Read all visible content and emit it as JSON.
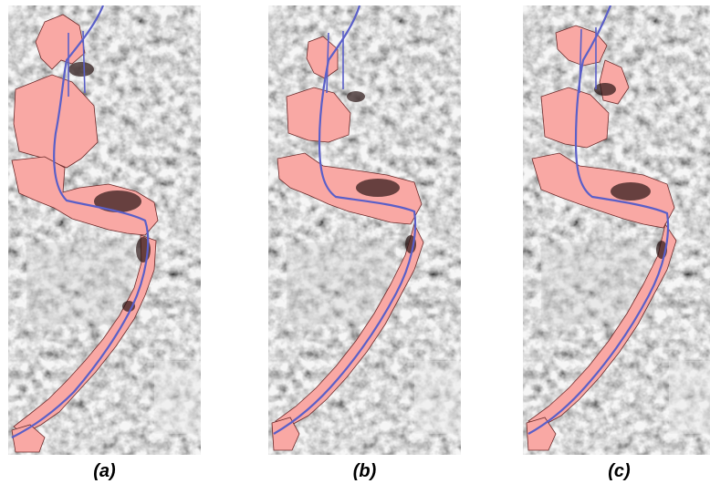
{
  "panels": [
    {
      "id": "a",
      "caption": "(a)"
    },
    {
      "id": "b",
      "caption": "(b)"
    },
    {
      "id": "c",
      "caption": "(c)"
    }
  ],
  "colors": {
    "flood_fill": "#f9a8a4",
    "river_line": "#5a5fc8",
    "background_dark": "#3a3a3a",
    "background_light": "#bdbdbd"
  }
}
